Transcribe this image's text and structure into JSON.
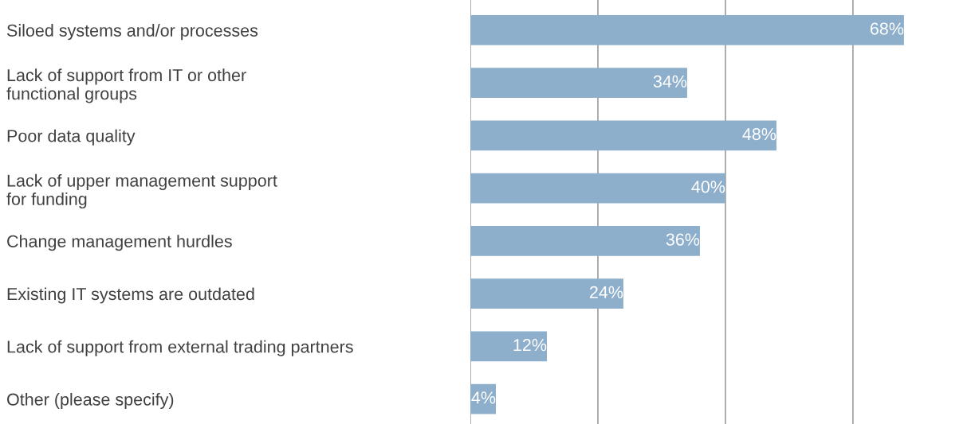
{
  "chart_data": {
    "type": "bar",
    "orientation": "horizontal",
    "categories": [
      "Siloed systems and/or processes",
      "Lack of support from IT or other\nfunctional groups",
      "Poor data quality",
      "Lack of upper management support\nfor funding",
      "Change management hurdles",
      "Existing IT systems are outdated",
      "Lack of support from external trading partners",
      "Other (please specify)"
    ],
    "values": [
      68,
      34,
      48,
      40,
      36,
      24,
      12,
      4
    ],
    "value_labels": [
      "68%",
      "34%",
      "48%",
      "40%",
      "36%",
      "24%",
      "12%",
      "4%"
    ],
    "color": "#8eafcc",
    "xticks": [
      {
        "value": 0,
        "label": null
      },
      {
        "value": 20,
        "label": null
      },
      {
        "value": 40,
        "label": null
      },
      {
        "value": 60,
        "label": null
      }
    ],
    "grid": "x",
    "tick_labels": "y"
  }
}
